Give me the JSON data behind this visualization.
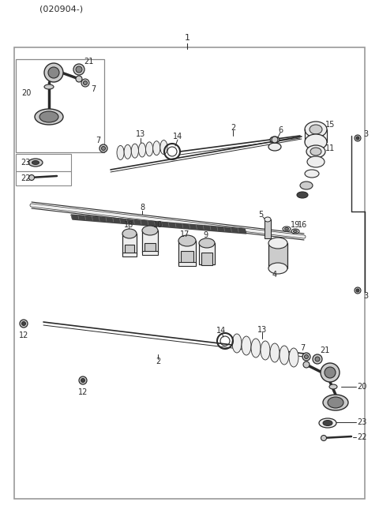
{
  "bg": "#ffffff",
  "lc": "#2a2a2a",
  "gray_dark": "#444444",
  "gray_med": "#888888",
  "gray_light": "#cccccc",
  "gray_vlight": "#eeeeee",
  "dash_color": "#aaaaaa",
  "border_color": "#999999",
  "fig_w": 4.8,
  "fig_h": 6.5,
  "dpi": 100,
  "header": "(020904-)"
}
